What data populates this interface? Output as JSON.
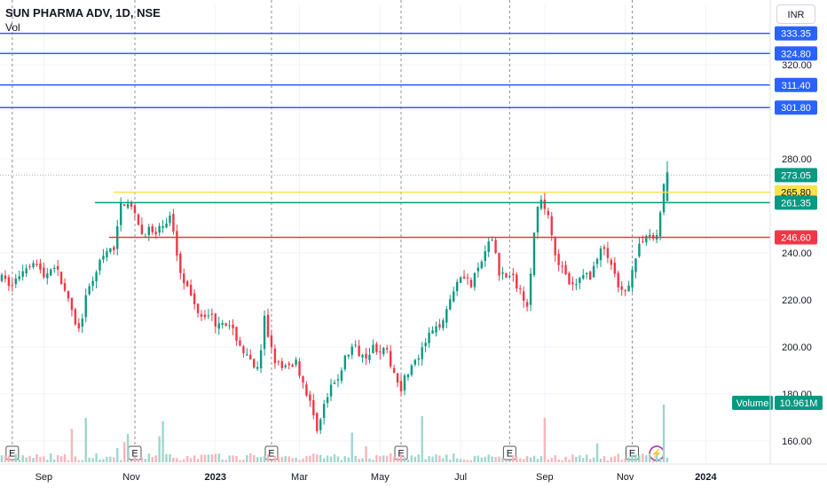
{
  "header": {
    "title": "SUN PHARMA ADV, 1D, NSE",
    "sublabel": "Vol",
    "currency": "INR"
  },
  "colors": {
    "up": "#089981",
    "down": "#f23645",
    "blue_line": "#2962ff",
    "yellow_line": "#f7e34e",
    "green_line": "#089981",
    "red_line": "#f23645",
    "last_price": "#089981",
    "volume_up": "#9fd6cd",
    "volume_down": "#f7b5ba",
    "grid": "#f0f3fa"
  },
  "chart_data": {
    "type": "candlestick",
    "ylim": [
      150,
      340
    ],
    "y_ticks": [
      "160.00",
      "180.00",
      "200.00",
      "220.00",
      "240.00",
      "280.00",
      "320.00"
    ],
    "x_ticks": [
      "Sep",
      "Nov",
      "2023",
      "Mar",
      "May",
      "Jul",
      "Sep",
      "Nov",
      "2024"
    ],
    "earnings_marker": "E",
    "earnings_count": 7,
    "level_lines": [
      {
        "value": 333.35,
        "label": "333.35",
        "color": "#2962ff"
      },
      {
        "value": 324.8,
        "label": "324.80",
        "color": "#2962ff"
      },
      {
        "value": 311.4,
        "label": "311.40",
        "color": "#2962ff"
      },
      {
        "value": 301.8,
        "label": "301.80",
        "color": "#2962ff"
      },
      {
        "value": 265.8,
        "label": "265.80",
        "color": "#f7e34e"
      },
      {
        "value": 261.35,
        "label": "261.35",
        "color": "#089981"
      },
      {
        "value": 246.6,
        "label": "246.60",
        "color": "#f23645"
      }
    ],
    "last_price": {
      "value": 273.05,
      "label": "273.05"
    },
    "volume": {
      "label": "Volume",
      "value": "10.961M"
    },
    "price_path": [
      [
        0,
        229
      ],
      [
        3,
        226
      ],
      [
        6,
        233
      ],
      [
        9,
        237
      ],
      [
        12,
        230
      ],
      [
        15,
        235
      ],
      [
        18,
        224
      ],
      [
        20,
        214
      ],
      [
        22,
        207
      ],
      [
        24,
        220
      ],
      [
        27,
        233
      ],
      [
        30,
        240
      ],
      [
        32,
        242
      ],
      [
        33,
        250
      ],
      [
        34,
        261
      ],
      [
        36,
        262
      ],
      [
        38,
        255
      ],
      [
        40,
        248
      ],
      [
        42,
        250
      ],
      [
        44,
        247
      ],
      [
        46,
        252
      ],
      [
        48,
        255
      ],
      [
        49,
        250
      ],
      [
        50,
        240
      ],
      [
        51,
        233
      ],
      [
        53,
        225
      ],
      [
        55,
        218
      ],
      [
        57,
        214
      ],
      [
        59,
        215
      ],
      [
        61,
        210
      ],
      [
        63,
        212
      ],
      [
        65,
        208
      ],
      [
        67,
        204
      ],
      [
        69,
        198
      ],
      [
        71,
        193
      ],
      [
        73,
        190
      ],
      [
        74,
        197
      ],
      [
        75,
        212
      ],
      [
        76,
        205
      ],
      [
        78,
        195
      ],
      [
        80,
        190
      ],
      [
        82,
        192
      ],
      [
        84,
        194
      ],
      [
        86,
        185
      ],
      [
        88,
        176
      ],
      [
        89,
        170
      ],
      [
        90,
        166
      ],
      [
        91,
        169
      ],
      [
        92,
        175
      ],
      [
        94,
        182
      ],
      [
        96,
        187
      ],
      [
        98,
        195
      ],
      [
        100,
        200
      ],
      [
        102,
        198
      ],
      [
        104,
        197
      ],
      [
        106,
        200
      ],
      [
        108,
        199
      ],
      [
        110,
        197
      ],
      [
        112,
        189
      ],
      [
        114,
        183
      ],
      [
        116,
        190
      ],
      [
        118,
        193
      ],
      [
        120,
        198
      ],
      [
        122,
        205
      ],
      [
        124,
        207
      ],
      [
        126,
        213
      ],
      [
        128,
        220
      ],
      [
        130,
        229
      ],
      [
        132,
        231
      ],
      [
        134,
        226
      ],
      [
        136,
        233
      ],
      [
        138,
        240
      ],
      [
        140,
        246
      ],
      [
        141,
        240
      ],
      [
        142,
        232
      ],
      [
        144,
        230
      ],
      [
        146,
        229
      ],
      [
        148,
        224
      ],
      [
        150,
        219
      ],
      [
        151,
        233
      ],
      [
        152,
        248
      ],
      [
        153,
        258
      ],
      [
        154,
        261
      ],
      [
        156,
        257
      ],
      [
        157,
        248
      ],
      [
        158,
        240
      ],
      [
        160,
        233
      ],
      [
        162,
        226
      ],
      [
        164,
        226
      ],
      [
        166,
        232
      ],
      [
        168,
        229
      ],
      [
        170,
        239
      ],
      [
        172,
        242
      ],
      [
        174,
        235
      ],
      [
        176,
        224
      ],
      [
        178,
        222
      ],
      [
        180,
        234
      ],
      [
        182,
        242
      ],
      [
        184,
        249
      ],
      [
        186,
        246
      ],
      [
        187,
        248
      ],
      [
        188,
        256
      ],
      [
        189,
        270
      ],
      [
        190,
        273
      ]
    ]
  }
}
